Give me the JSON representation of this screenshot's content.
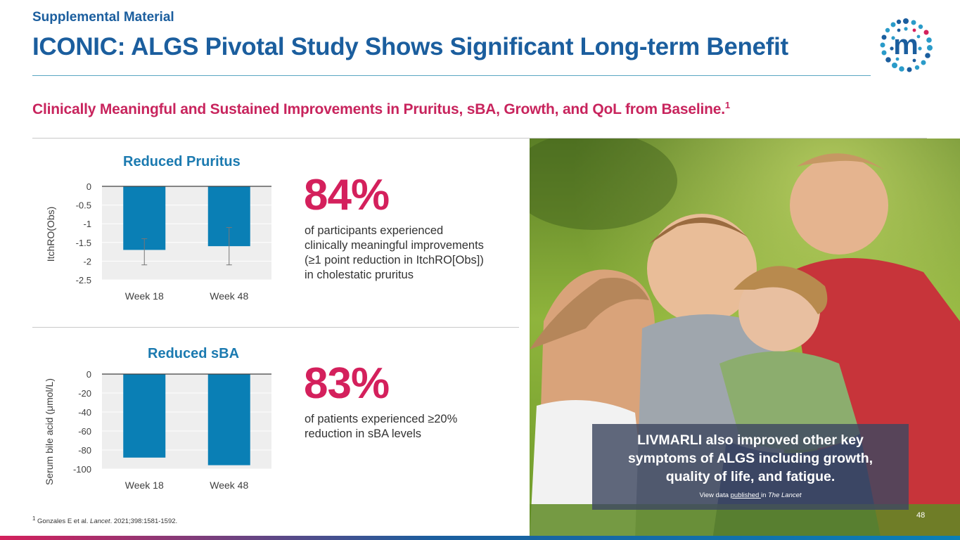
{
  "header": {
    "supplemental": "Supplemental Material",
    "title": "ICONIC: ALGS Pivotal Study Shows Significant Long-term Benefit",
    "subtitle": "Clinically Meaningful and Sustained Improvements in Pruritus, sBA, Growth, and QoL from Baseline.",
    "subtitle_sup": "1"
  },
  "logo": {
    "icon": "company-logo-m-dots",
    "letter": "m"
  },
  "chart_data": [
    {
      "type": "bar",
      "title": "Reduced Pruritus",
      "xlabel": "",
      "ylabel": "ItchRO(Obs)",
      "categories": [
        "Week 18",
        "Week 48"
      ],
      "values": [
        -1.7,
        -1.6
      ],
      "error_low": [
        -2.1,
        -2.1
      ],
      "error_high": [
        -1.4,
        -1.1
      ],
      "ylim": [
        -2.5,
        0
      ],
      "yticks": [
        0,
        -0.5,
        -1,
        -1.5,
        -2,
        -2.5
      ],
      "ytick_labels": [
        "0",
        "-0.5",
        "-1",
        "-1.5",
        "-2",
        "-2.5"
      ],
      "color": "#0a7fb5"
    },
    {
      "type": "bar",
      "title": "Reduced sBA",
      "xlabel": "",
      "ylabel": "Serum bile acid (μmol/L)",
      "categories": [
        "Week 18",
        "Week 48"
      ],
      "values": [
        -88,
        -96
      ],
      "ylim": [
        -100,
        0
      ],
      "yticks": [
        0,
        -20,
        -40,
        -60,
        -80,
        -100
      ],
      "ytick_labels": [
        "0",
        "-20",
        "-40",
        "-60",
        "-80",
        "-100"
      ],
      "color": "#0a7fb5"
    }
  ],
  "stats": [
    {
      "value": "84%",
      "lines": [
        "of participants experienced",
        "clinically meaningful improvements",
        "(≥1 point reduction in ItchRO[Obs])",
        "in cholestatic pruritus"
      ]
    },
    {
      "value": "83%",
      "lines": [
        "of patients experienced ≥20%",
        "reduction in sBA levels"
      ]
    }
  ],
  "callout": {
    "text": "LIVMARLI also improved other key symptoms of ALGS including growth, quality of life, and fatigue.",
    "link_prefix": "View data ",
    "link_text": "published ",
    "link_suffix": "in ",
    "journal": "The Lancet"
  },
  "footnote": {
    "sup": "1",
    "prefix": " Gonzales E et al. ",
    "journal": "Lancet",
    "suffix": ". 2021;398:1581-1592."
  },
  "page_number": "48",
  "colors": {
    "brand_blue": "#1b5e9e",
    "accent_pink": "#d4205c",
    "bar_blue": "#0a7fb5"
  }
}
